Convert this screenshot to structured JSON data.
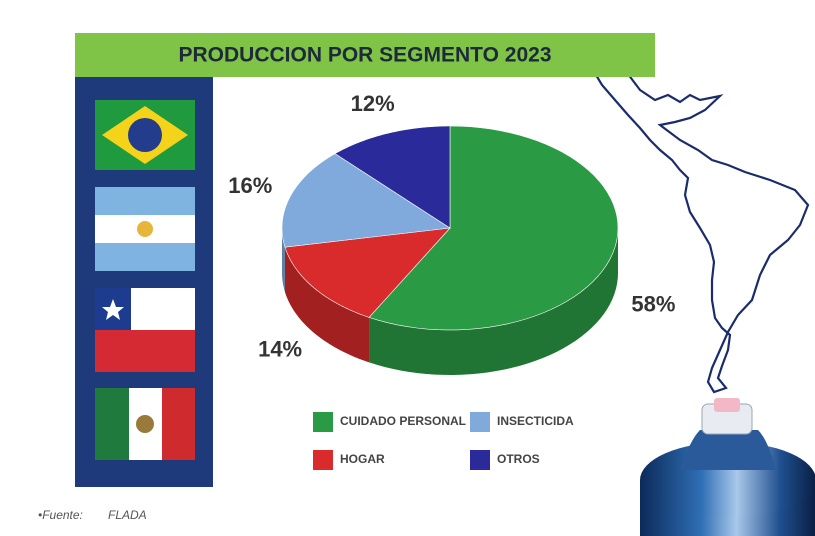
{
  "chart_data": {
    "type": "pie",
    "title": "PRODUCCION POR SEGMENTO 2023",
    "categories": [
      "CUIDADO PERSONAL",
      "HOGAR",
      "INSECTICIDA",
      "OTROS"
    ],
    "values": [
      58,
      14,
      16,
      12
    ],
    "value_labels": [
      "58%",
      "14%",
      "16%",
      "12%"
    ],
    "colors": [
      "#2a9a45",
      "#d92a2c",
      "#7faadb",
      "#2a2a9a"
    ],
    "source_label": "•Fuente:",
    "source": "FLADA"
  }
}
